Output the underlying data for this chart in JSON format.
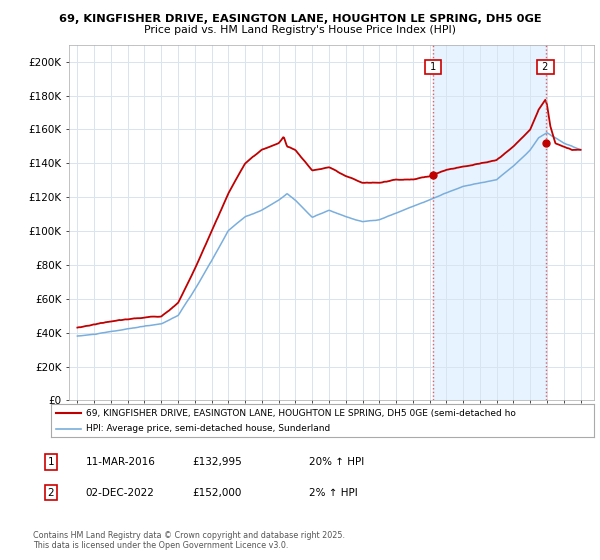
{
  "title_line1": "69, KINGFISHER DRIVE, EASINGTON LANE, HOUGHTON LE SPRING, DH5 0GE",
  "title_line2": "Price paid vs. HM Land Registry's House Price Index (HPI)",
  "ylabel_values": [
    "£0",
    "£20K",
    "£40K",
    "£60K",
    "£80K",
    "£100K",
    "£120K",
    "£140K",
    "£160K",
    "£180K",
    "£200K"
  ],
  "ytick_values": [
    0,
    20000,
    40000,
    60000,
    80000,
    100000,
    120000,
    140000,
    160000,
    180000,
    200000
  ],
  "ylim": [
    0,
    210000
  ],
  "color_hpi": "#7aaedc",
  "color_price": "#c00000",
  "color_vline": "#e06060",
  "color_fill": "#ddeeff",
  "marker1_date_x": 2016.19,
  "marker2_date_x": 2022.92,
  "marker1_price": 132995,
  "marker2_price": 152000,
  "legend_price_label": "69, KINGFISHER DRIVE, EASINGTON LANE, HOUGHTON LE SPRING, DH5 0GE (semi-detached ho",
  "legend_hpi_label": "HPI: Average price, semi-detached house, Sunderland",
  "footnote": "Contains HM Land Registry data © Crown copyright and database right 2025.\nThis data is licensed under the Open Government Licence v3.0.",
  "background_color": "#ffffff",
  "grid_color": "#d8e4f0",
  "xlim_start": 1994.5,
  "xlim_end": 2025.8,
  "hpi_key_points": [
    [
      1995.0,
      38000
    ],
    [
      1996.0,
      39000
    ],
    [
      1997.0,
      40500
    ],
    [
      1998.0,
      42000
    ],
    [
      1999.0,
      43500
    ],
    [
      2000.0,
      45000
    ],
    [
      2001.0,
      50000
    ],
    [
      2002.0,
      65000
    ],
    [
      2003.0,
      82000
    ],
    [
      2004.0,
      100000
    ],
    [
      2005.0,
      108000
    ],
    [
      2006.0,
      112000
    ],
    [
      2007.0,
      118000
    ],
    [
      2007.5,
      122000
    ],
    [
      2008.0,
      118000
    ],
    [
      2009.0,
      108000
    ],
    [
      2010.0,
      112000
    ],
    [
      2011.0,
      108000
    ],
    [
      2012.0,
      105000
    ],
    [
      2013.0,
      106000
    ],
    [
      2014.0,
      110000
    ],
    [
      2015.0,
      114000
    ],
    [
      2016.0,
      118000
    ],
    [
      2017.0,
      122000
    ],
    [
      2018.0,
      126000
    ],
    [
      2019.0,
      128000
    ],
    [
      2020.0,
      130000
    ],
    [
      2021.0,
      138000
    ],
    [
      2022.0,
      148000
    ],
    [
      2022.5,
      155000
    ],
    [
      2023.0,
      158000
    ],
    [
      2023.5,
      155000
    ],
    [
      2024.0,
      152000
    ],
    [
      2024.5,
      150000
    ],
    [
      2025.0,
      148000
    ]
  ],
  "price_key_points": [
    [
      1995.0,
      43000
    ],
    [
      1996.0,
      45000
    ],
    [
      1997.0,
      47000
    ],
    [
      1998.0,
      48000
    ],
    [
      1999.0,
      49000
    ],
    [
      2000.0,
      50000
    ],
    [
      2001.0,
      58000
    ],
    [
      2002.0,
      78000
    ],
    [
      2003.0,
      100000
    ],
    [
      2004.0,
      122000
    ],
    [
      2005.0,
      140000
    ],
    [
      2006.0,
      148000
    ],
    [
      2007.0,
      152000
    ],
    [
      2007.3,
      156000
    ],
    [
      2007.5,
      150000
    ],
    [
      2008.0,
      148000
    ],
    [
      2008.5,
      142000
    ],
    [
      2009.0,
      136000
    ],
    [
      2010.0,
      138000
    ],
    [
      2011.0,
      132000
    ],
    [
      2012.0,
      128000
    ],
    [
      2013.0,
      128000
    ],
    [
      2014.0,
      130000
    ],
    [
      2015.0,
      130000
    ],
    [
      2016.0,
      132000
    ],
    [
      2016.2,
      133000
    ],
    [
      2017.0,
      136000
    ],
    [
      2018.0,
      138000
    ],
    [
      2019.0,
      140000
    ],
    [
      2020.0,
      142000
    ],
    [
      2021.0,
      150000
    ],
    [
      2022.0,
      160000
    ],
    [
      2022.5,
      172000
    ],
    [
      2022.9,
      178000
    ],
    [
      2023.0,
      175000
    ],
    [
      2023.2,
      162000
    ],
    [
      2023.5,
      152000
    ],
    [
      2024.0,
      150000
    ],
    [
      2024.5,
      148000
    ],
    [
      2025.0,
      148000
    ]
  ]
}
